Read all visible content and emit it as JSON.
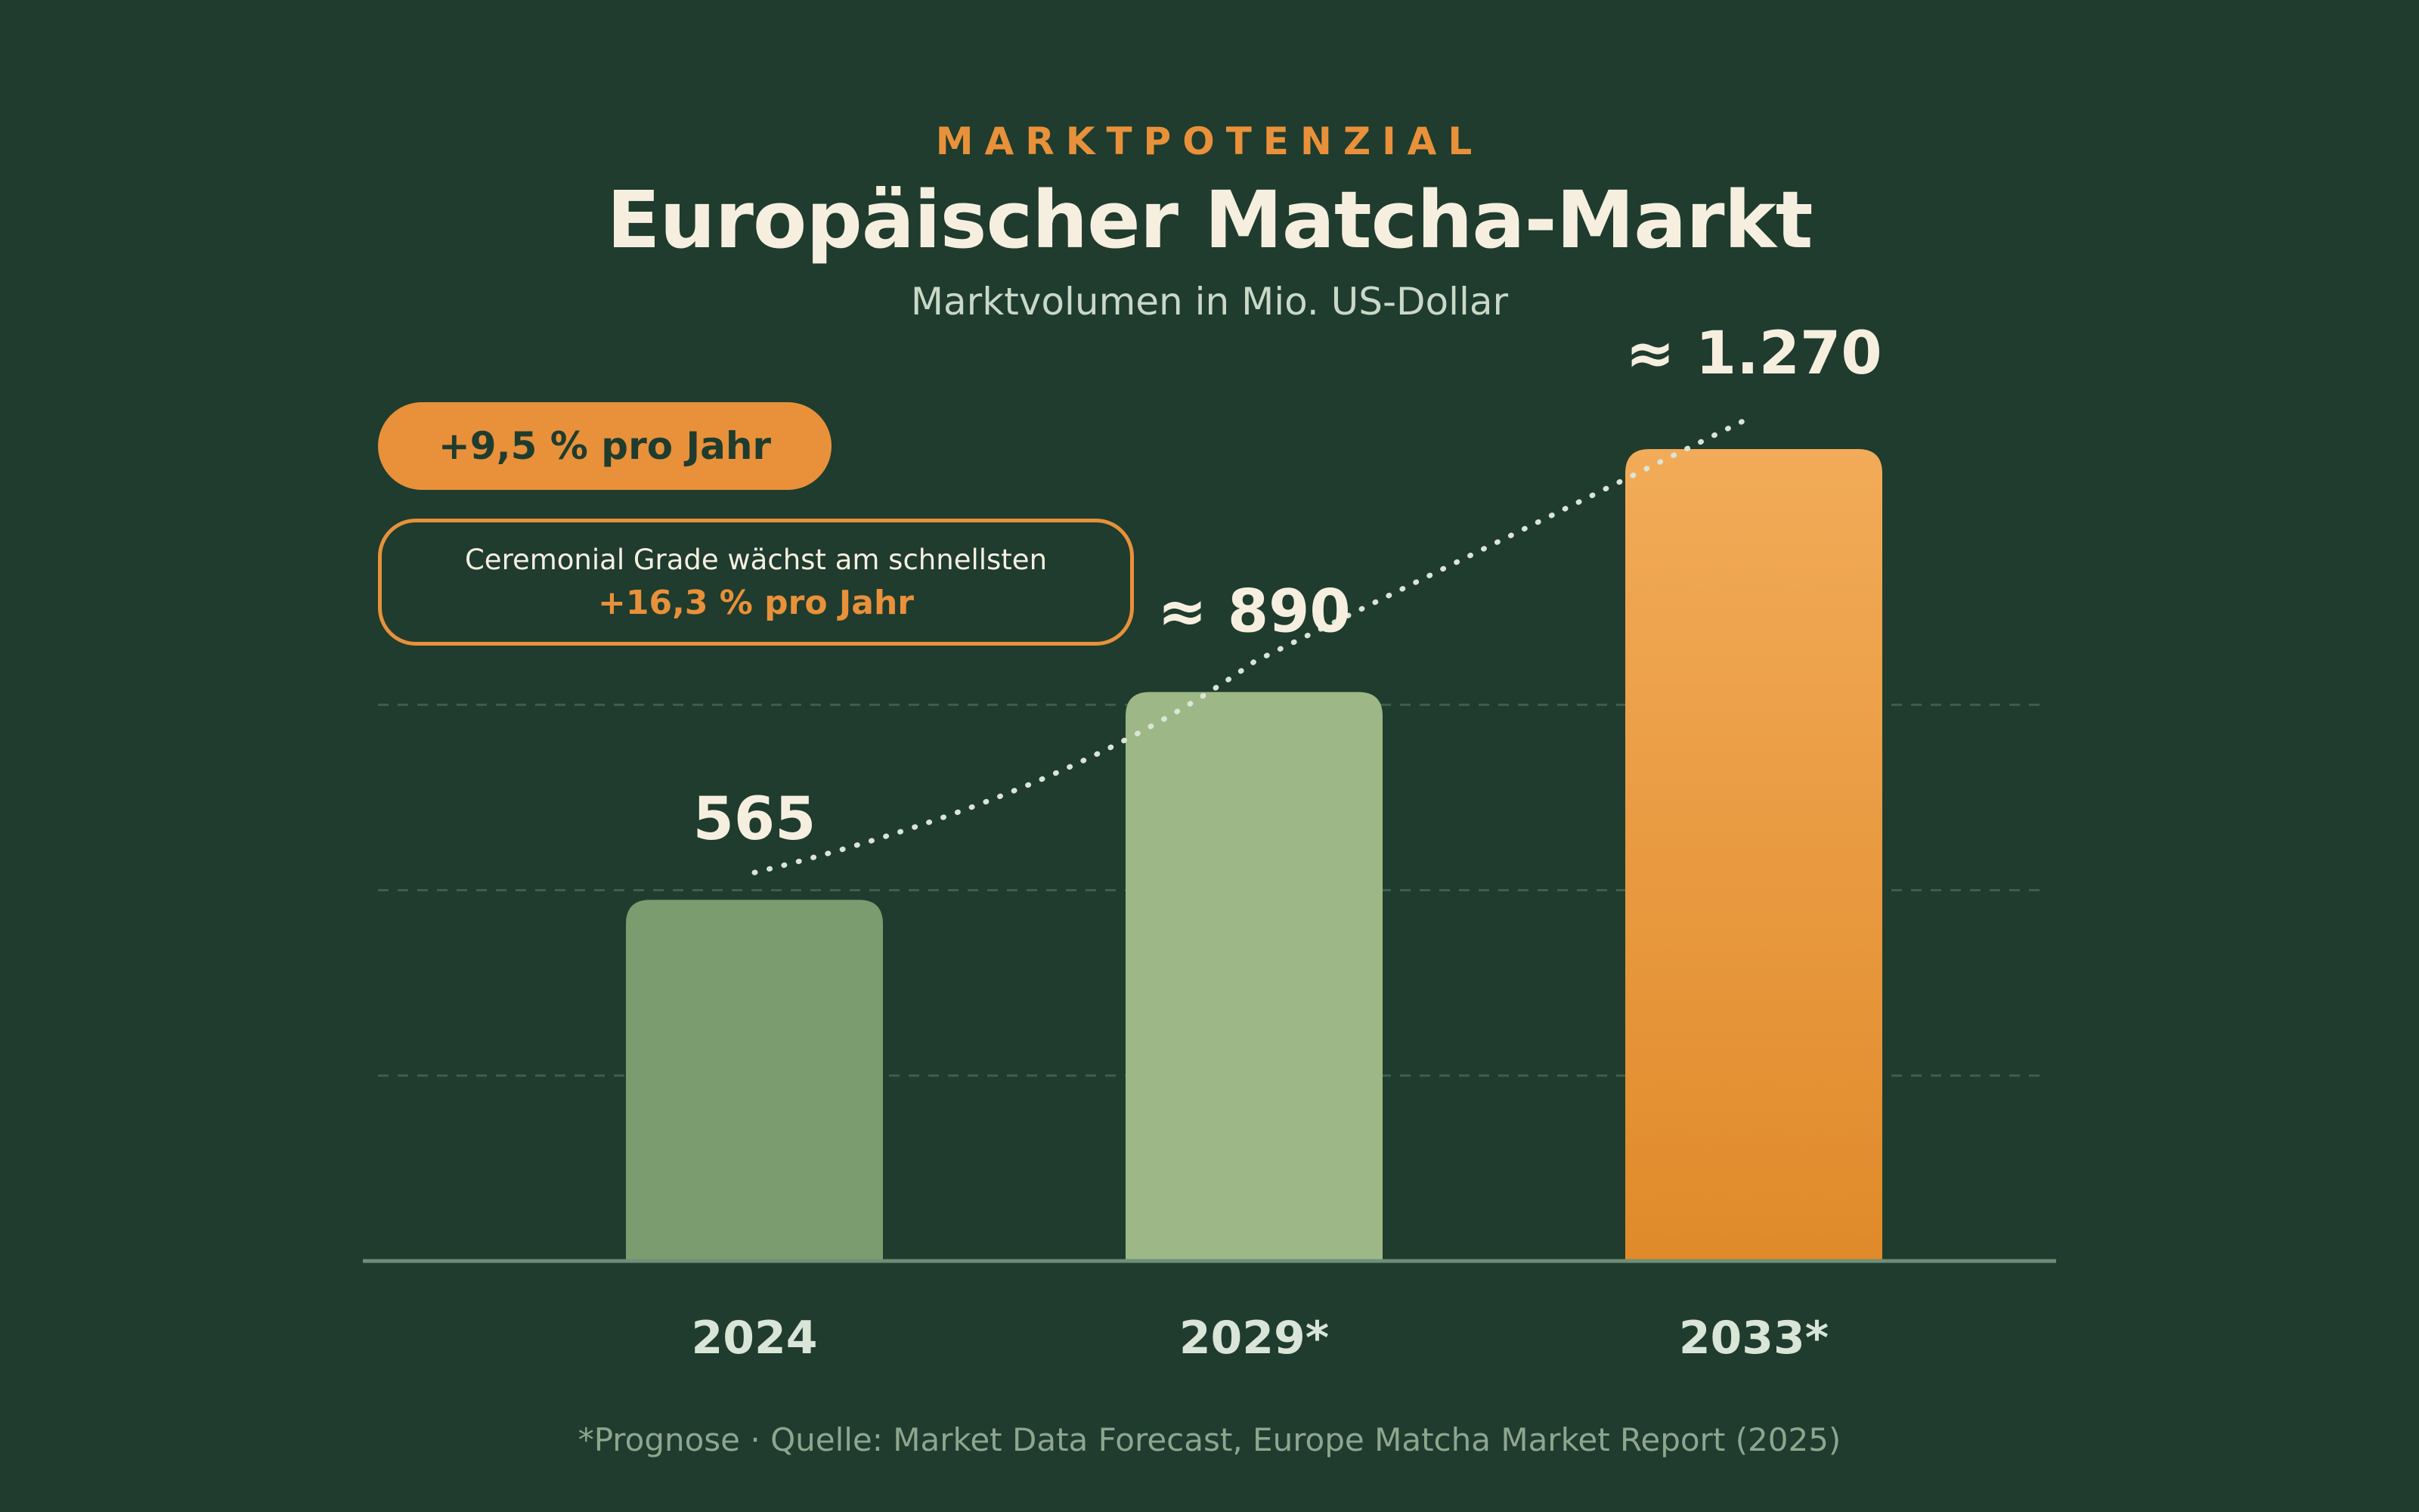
{
  "header": {
    "kicker": "MARKTPOTENZIAL",
    "title": "Europäischer Matcha-Markt",
    "subtitle": "Marktvolumen in Mio. US-Dollar"
  },
  "growth_pill": "+9,5 % pro Jahr",
  "callout": {
    "text": "Ceremonial Grade wächst am schnellsten",
    "value": "+16,3 % pro Jahr"
  },
  "footnote": "*Prognose · Quelle: Market Data Forecast, Europe Matcha Market Report (2025)",
  "colors": {
    "background": "#1f3c2e",
    "accent": "#e8913a",
    "bar_2024": "#7b9c6e",
    "bar_2029": "#9db886",
    "bar_2033_top": "#f2ab58",
    "bar_2033_bottom": "#e08a2a",
    "text_light": "#f6efdf"
  },
  "chart_data": {
    "type": "bar",
    "categories": [
      "2024",
      "2029*",
      "2033*"
    ],
    "values": [
      565,
      890,
      1270
    ],
    "value_labels": [
      "565",
      "≈ 890",
      "≈ 1.270"
    ],
    "ylim": [
      0,
      1270
    ],
    "grid": true,
    "trend_line": "dotted"
  }
}
